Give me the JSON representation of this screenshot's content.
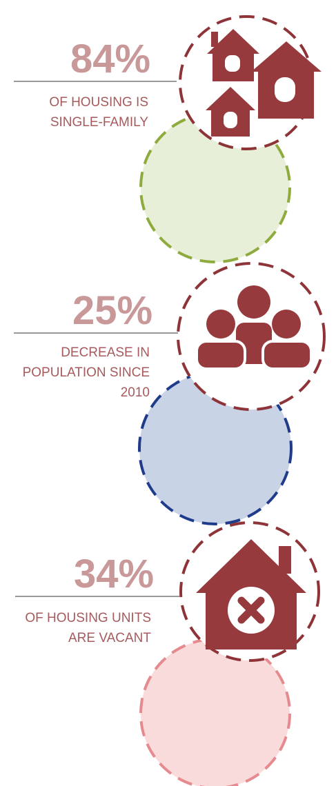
{
  "items": [
    {
      "stat": "84%",
      "lines": [
        "OF HOUSING IS",
        "SINGLE-FAMILY"
      ]
    },
    {
      "stat": "25%",
      "lines": [
        "DECREASE IN",
        "POPULATION SINCE",
        "2010"
      ]
    },
    {
      "stat": "34%",
      "lines": [
        "OF HOUSING UNITS",
        "ARE VACANT"
      ]
    }
  ]
}
